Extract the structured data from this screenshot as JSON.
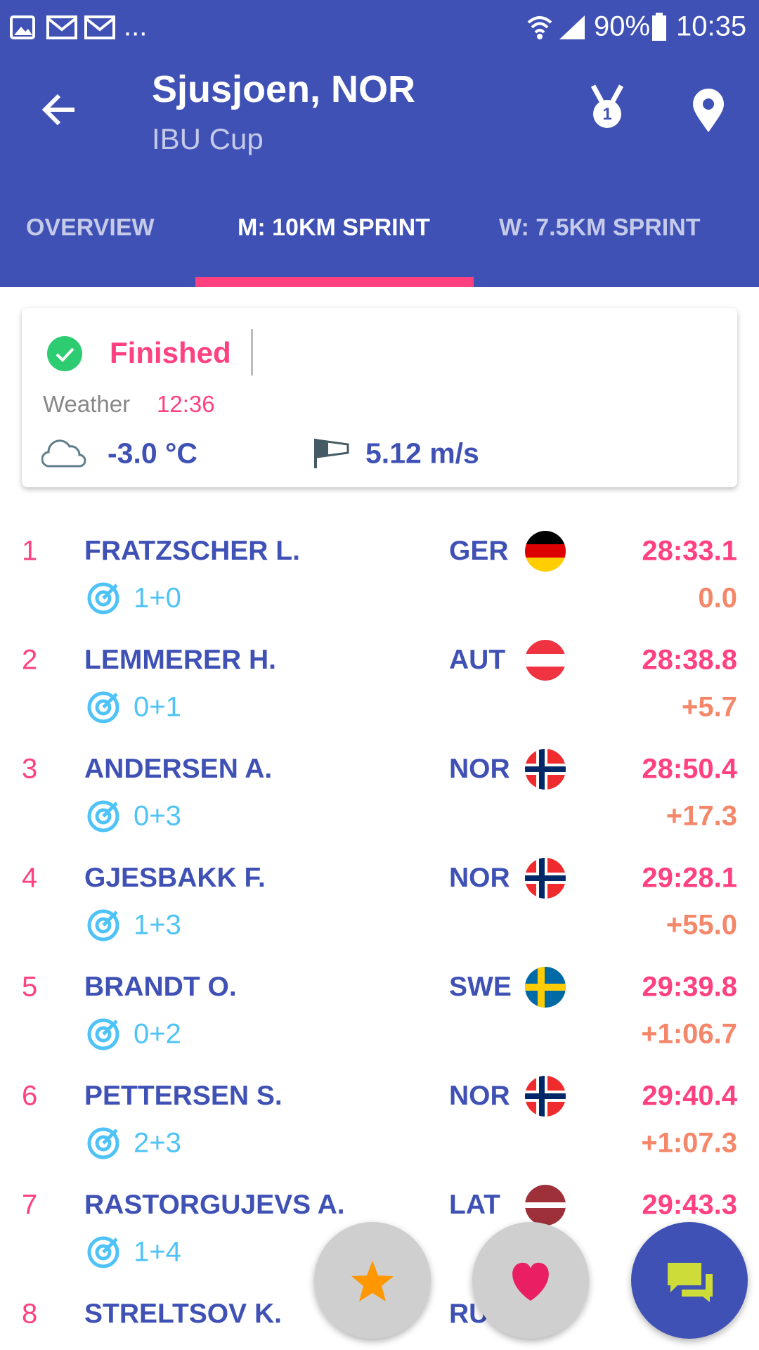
{
  "status_bar": {
    "more": "...",
    "battery": "90%",
    "time": "10:35"
  },
  "header": {
    "title": "Sjusjoen, NOR",
    "subtitle": "IBU Cup"
  },
  "tabs": [
    "OVERVIEW",
    "M: 10KM SPRINT",
    "W: 7.5KM SPRINT"
  ],
  "card": {
    "status": "Finished",
    "weather_label": "Weather",
    "weather_time": "12:36",
    "temperature": "-3.0 °C",
    "wind": "5.12 m/s"
  },
  "results": [
    {
      "rank": "1",
      "name": "FRATZSCHER L.",
      "nation": "GER",
      "shooting": "1+0",
      "time": "28:33.1",
      "behind": "0.0"
    },
    {
      "rank": "2",
      "name": "LEMMERER H.",
      "nation": "AUT",
      "shooting": "0+1",
      "time": "28:38.8",
      "behind": "+5.7"
    },
    {
      "rank": "3",
      "name": "ANDERSEN A.",
      "nation": "NOR",
      "shooting": "0+3",
      "time": "28:50.4",
      "behind": "+17.3"
    },
    {
      "rank": "4",
      "name": "GJESBAKK F.",
      "nation": "NOR",
      "shooting": "1+3",
      "time": "29:28.1",
      "behind": "+55.0"
    },
    {
      "rank": "5",
      "name": "BRANDT O.",
      "nation": "SWE",
      "shooting": "0+2",
      "time": "29:39.8",
      "behind": "+1:06.7"
    },
    {
      "rank": "6",
      "name": "PETTERSEN S.",
      "nation": "NOR",
      "shooting": "2+3",
      "time": "29:40.4",
      "behind": "+1:07.3"
    },
    {
      "rank": "7",
      "name": "RASTORGUJEVS A.",
      "nation": "LAT",
      "shooting": "1+4",
      "time": "29:43.3"
    },
    {
      "rank": "8",
      "name": "STRELTSOV K.",
      "nation": "RUS"
    }
  ]
}
